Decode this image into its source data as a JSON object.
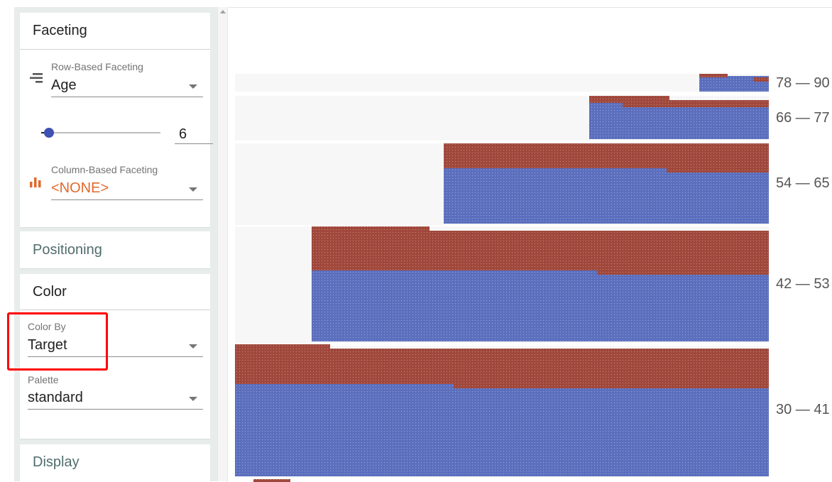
{
  "sidebar": {
    "faceting": {
      "title": "Faceting",
      "row": {
        "label": "Row-Based Faceting",
        "value": "Age"
      },
      "bins": {
        "value": "6"
      },
      "column": {
        "label": "Column-Based Faceting",
        "value": "<NONE>"
      }
    },
    "positioning": {
      "title": "Positioning"
    },
    "color": {
      "title": "Color",
      "color_by": {
        "label": "Color By",
        "value": "Target"
      },
      "palette": {
        "label": "Palette",
        "value": "standard"
      }
    },
    "display": {
      "title": "Display"
    }
  },
  "facets": [
    {
      "label": "78 — 90"
    },
    {
      "label": "66 — 77"
    },
    {
      "label": "54 — 65"
    },
    {
      "label": "42 — 53"
    },
    {
      "label": "30 — 41"
    }
  ],
  "colors": {
    "positive": "#a0483c",
    "negative": "#5b6fbe",
    "row_background": "#f7f7f7",
    "highlight": "#ff0000",
    "accent": "#3f51b5"
  },
  "icons": {
    "row_faceting": "row-faceting-icon",
    "column_faceting": "bar-chart-icon"
  }
}
